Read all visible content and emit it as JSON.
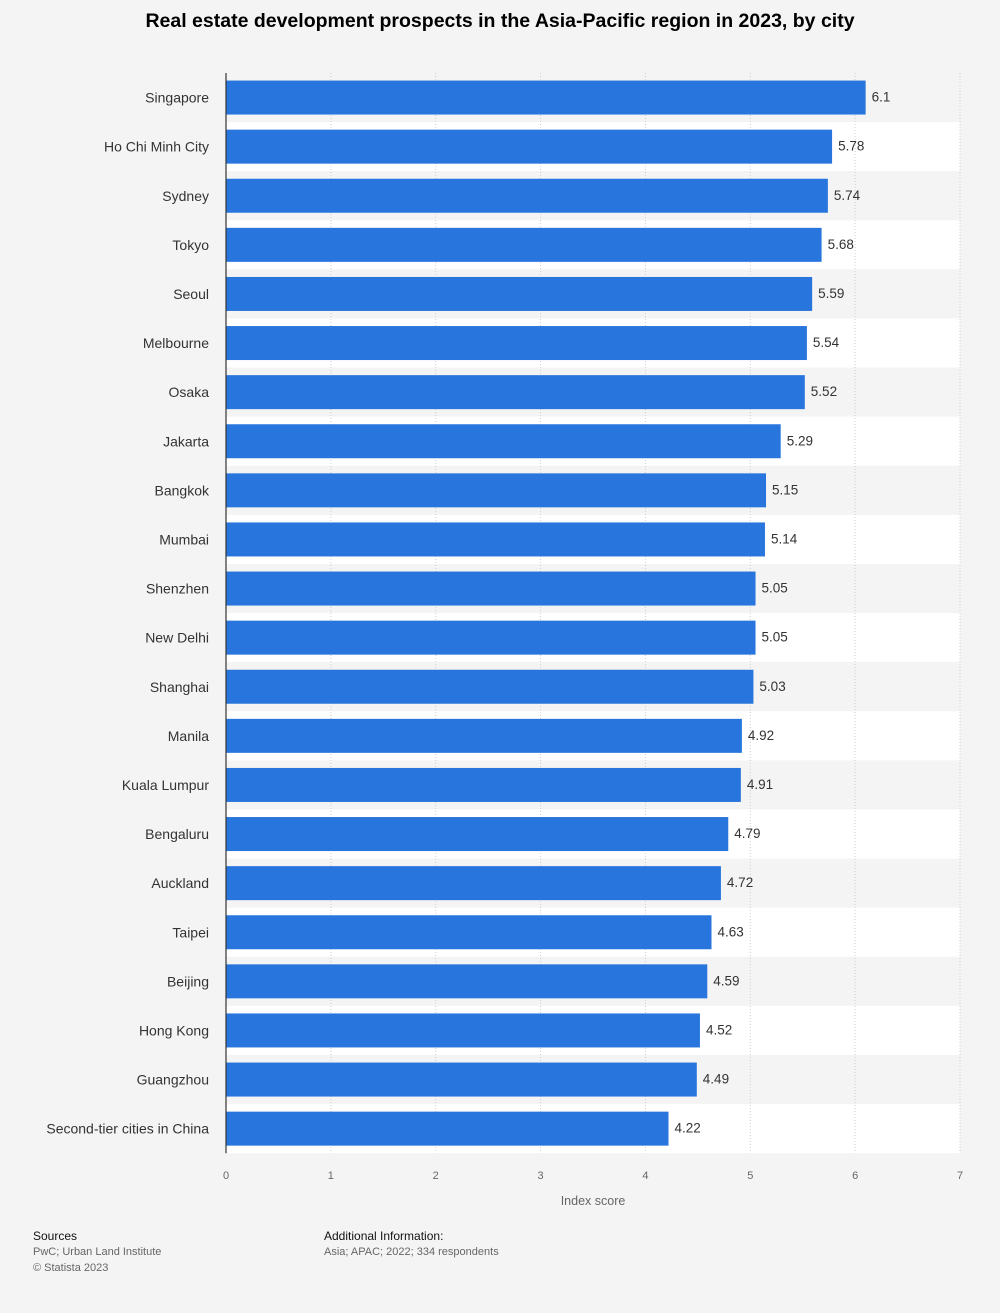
{
  "chart_data": {
    "type": "bar",
    "orientation": "horizontal",
    "title": "Real estate development prospects in the Asia-Pacific region in 2023, by city",
    "xlabel": "Index score",
    "ylabel": "",
    "xlim": [
      0,
      7
    ],
    "xticks": [
      0,
      1,
      2,
      3,
      4,
      5,
      6,
      7
    ],
    "grid": true,
    "categories": [
      "Singapore",
      "Ho Chi Minh City",
      "Sydney",
      "Tokyo",
      "Seoul",
      "Melbourne",
      "Osaka",
      "Jakarta",
      "Bangkok",
      "Mumbai",
      "Shenzhen",
      "New Delhi",
      "Shanghai",
      "Manila",
      "Kuala Lumpur",
      "Bengaluru",
      "Auckland",
      "Taipei",
      "Beijing",
      "Hong Kong",
      "Guangzhou",
      "Second-tier cities in China"
    ],
    "values": [
      6.1,
      5.78,
      5.74,
      5.68,
      5.59,
      5.54,
      5.52,
      5.29,
      5.15,
      5.14,
      5.05,
      5.05,
      5.03,
      4.92,
      4.91,
      4.79,
      4.72,
      4.63,
      4.59,
      4.52,
      4.49,
      4.22
    ],
    "value_labels": [
      "6.1",
      "5.78",
      "5.74",
      "5.68",
      "5.59",
      "5.54",
      "5.52",
      "5.29",
      "5.15",
      "5.14",
      "5.05",
      "5.05",
      "5.03",
      "4.92",
      "4.91",
      "4.79",
      "4.72",
      "4.63",
      "4.59",
      "4.52",
      "4.49",
      "4.22"
    ],
    "bar_color": "#2876dd"
  },
  "footer": {
    "sources_heading": "Sources",
    "sources_line1": "PwC; Urban Land Institute",
    "sources_line2": "© Statista 2023",
    "additional_heading": "Additional Information:",
    "additional_text": "Asia; APAC; 2022; 334 respondents"
  }
}
